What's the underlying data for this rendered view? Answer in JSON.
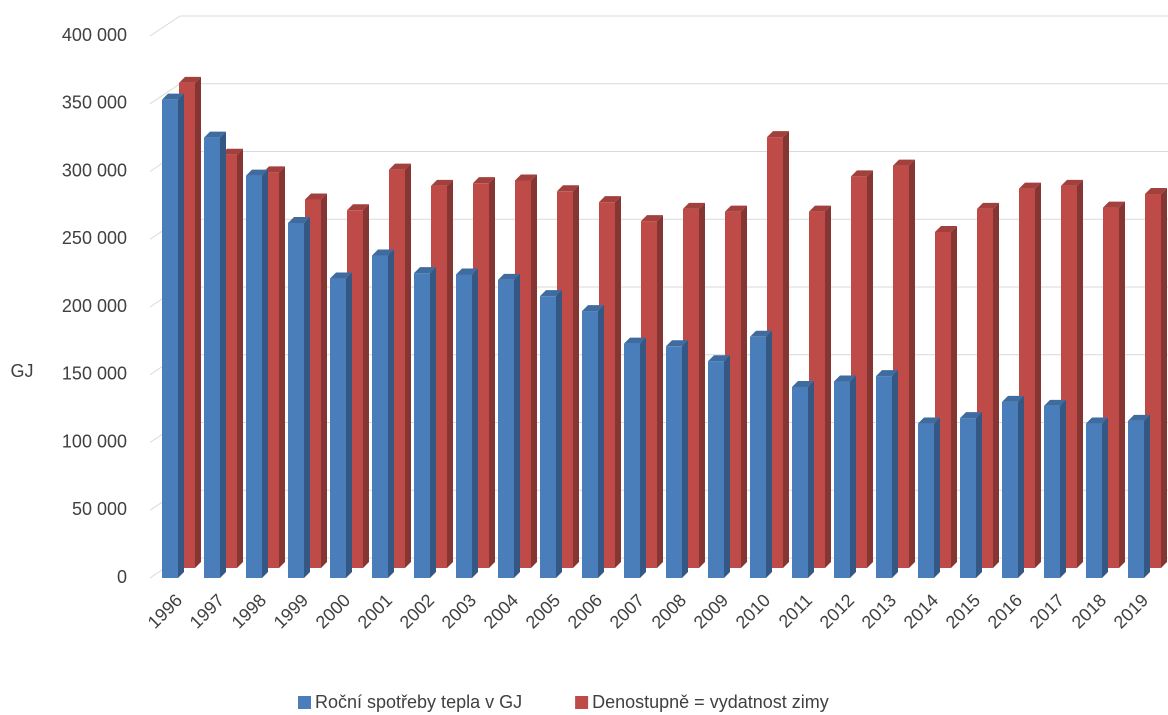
{
  "chart_data": {
    "type": "bar3d",
    "y_label": "GJ",
    "categories": [
      "1996",
      "1997",
      "1998",
      "1999",
      "2000",
      "2001",
      "2002",
      "2003",
      "2004",
      "2005",
      "2006",
      "2007",
      "2008",
      "2009",
      "2010",
      "2011",
      "2012",
      "2013",
      "2014",
      "2015",
      "2016",
      "2017",
      "2018",
      "2019"
    ],
    "series": [
      {
        "name": "Roční spotřeby tepla v GJ",
        "color": "#4a7ebb",
        "values": [
          353000,
          325000,
          297000,
          262000,
          221000,
          238000,
          225000,
          224000,
          220000,
          208000,
          197000,
          173000,
          171000,
          160000,
          178000,
          141000,
          145000,
          149000,
          114000,
          118000,
          130000,
          127000,
          114000,
          116000
        ]
      },
      {
        "name": "Denostupně = vydatnost zimy",
        "color": "#be4b48",
        "values": [
          358000,
          305000,
          292000,
          272000,
          264000,
          294000,
          282000,
          284000,
          286000,
          278000,
          270000,
          256000,
          265000,
          263000,
          318000,
          263000,
          289000,
          297000,
          248000,
          265000,
          280000,
          282000,
          266000,
          276000
        ]
      }
    ],
    "ylim": [
      0,
      400000
    ],
    "yticks": [
      0,
      {
        "value": 50000,
        "label": "50 000"
      },
      {
        "value": 100000,
        "label": "100 000"
      },
      {
        "value": 150000,
        "label": "150 000"
      },
      {
        "value": 200000,
        "label": "200 000"
      },
      {
        "value": 250000,
        "label": "250 000"
      },
      {
        "value": 300000,
        "label": "300 000"
      },
      {
        "value": 350000,
        "label": "350 000"
      },
      {
        "value": 400000,
        "label": "400 000"
      }
    ],
    "grid": true
  }
}
